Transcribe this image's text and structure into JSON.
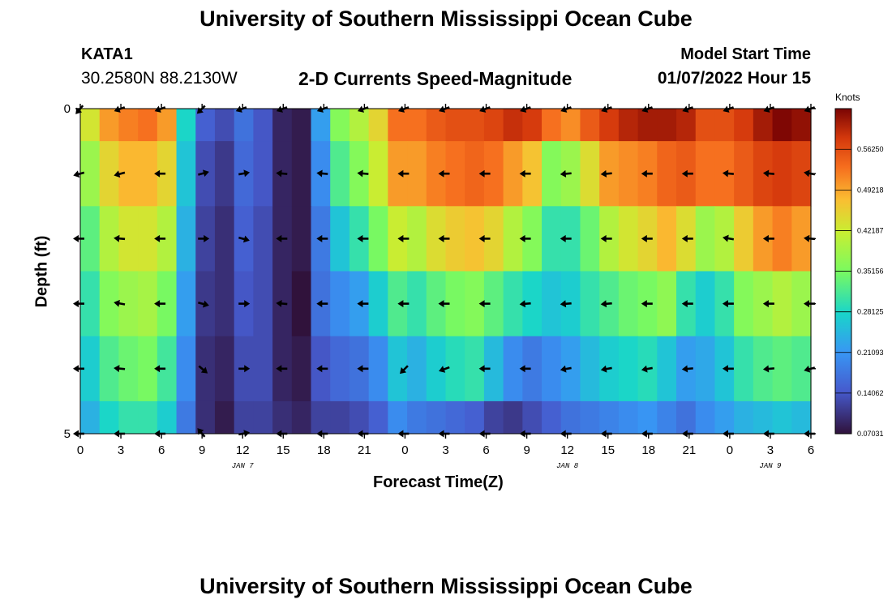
{
  "titles": {
    "main": "University of Southern Mississippi Ocean Cube",
    "next_panel": "University of Southern Mississippi Ocean Cube"
  },
  "station": {
    "id": "KATA1",
    "coords": "30.2580N  88.2130W"
  },
  "model": {
    "label": "Model Start Time",
    "time": "01/07/2022 Hour 15"
  },
  "chart_data": {
    "type": "heatmap",
    "title": "2-D Currents Speed-Magnitude",
    "xlabel": "Forecast Time(Z)",
    "ylabel": "Depth (ft)",
    "colorbar_label": "Knots",
    "colorbar_ticks": [
      "0.56250",
      "0.49218",
      "0.42187",
      "0.35156",
      "0.28125",
      "0.21093",
      "0.14062",
      "0.07031"
    ],
    "colorbar_range": [
      0.0703,
      0.633
    ],
    "x_hours": [
      0,
      3,
      6,
      9,
      12,
      15,
      18,
      21,
      24,
      27,
      30,
      33,
      36,
      39,
      42,
      45,
      48,
      51,
      54
    ],
    "x_tick_labels": [
      "0",
      "3",
      "6",
      "9",
      "12",
      "15",
      "18",
      "21",
      "0",
      "3",
      "6",
      "9",
      "12",
      "15",
      "18",
      "21",
      "0",
      "3",
      "6"
    ],
    "xlim_hours": [
      0,
      54
    ],
    "day_labels": [
      {
        "hour": 12,
        "label": "JAN 7"
      },
      {
        "hour": 36,
        "label": "JAN 8"
      },
      {
        "hour": 51,
        "label": "JAN 9"
      }
    ],
    "y_tick_labels": [
      "0",
      "",
      "",
      "",
      "",
      "5"
    ],
    "ylim": [
      0,
      5
    ],
    "depth_rows": [
      {
        "depth_range": [
          0,
          0.5
        ],
        "speeds": [
          0.43,
          0.5,
          0.52,
          0.53,
          0.5,
          0.28,
          0.15,
          0.13,
          0.17,
          0.14,
          0.09,
          0.08,
          0.22,
          0.36,
          0.4,
          0.45,
          0.53,
          0.53,
          0.55,
          0.56,
          0.56,
          0.57,
          0.59,
          0.58,
          0.53,
          0.51,
          0.55,
          0.58,
          0.6,
          0.61,
          0.61,
          0.6,
          0.56,
          0.56,
          0.58,
          0.61,
          0.63,
          0.62
        ]
      },
      {
        "depth_range": [
          0.5,
          1.5
        ],
        "speeds": [
          0.38,
          0.45,
          0.48,
          0.48,
          0.45,
          0.26,
          0.13,
          0.11,
          0.16,
          0.14,
          0.09,
          0.08,
          0.2,
          0.32,
          0.36,
          0.42,
          0.5,
          0.5,
          0.52,
          0.53,
          0.54,
          0.53,
          0.5,
          0.47,
          0.36,
          0.38,
          0.44,
          0.5,
          0.51,
          0.52,
          0.54,
          0.55,
          0.53,
          0.53,
          0.55,
          0.57,
          0.58,
          0.57
        ]
      },
      {
        "depth_range": [
          1.5,
          2.5
        ],
        "speeds": [
          0.33,
          0.4,
          0.43,
          0.43,
          0.4,
          0.24,
          0.12,
          0.1,
          0.15,
          0.13,
          0.09,
          0.08,
          0.18,
          0.26,
          0.3,
          0.35,
          0.42,
          0.4,
          0.44,
          0.46,
          0.47,
          0.45,
          0.4,
          0.36,
          0.3,
          0.3,
          0.34,
          0.4,
          0.43,
          0.45,
          0.48,
          0.44,
          0.38,
          0.4,
          0.46,
          0.5,
          0.52,
          0.5
        ]
      },
      {
        "depth_range": [
          2.5,
          3.5
        ],
        "speeds": [
          0.3,
          0.36,
          0.38,
          0.39,
          0.35,
          0.22,
          0.11,
          0.1,
          0.14,
          0.13,
          0.09,
          0.07,
          0.17,
          0.2,
          0.22,
          0.27,
          0.32,
          0.3,
          0.33,
          0.35,
          0.36,
          0.33,
          0.3,
          0.28,
          0.26,
          0.27,
          0.3,
          0.32,
          0.34,
          0.35,
          0.37,
          0.3,
          0.27,
          0.3,
          0.36,
          0.38,
          0.4,
          0.38
        ]
      },
      {
        "depth_range": [
          3.5,
          4.5
        ],
        "speeds": [
          0.27,
          0.32,
          0.34,
          0.35,
          0.31,
          0.2,
          0.1,
          0.09,
          0.13,
          0.13,
          0.09,
          0.08,
          0.14,
          0.16,
          0.17,
          0.2,
          0.26,
          0.24,
          0.27,
          0.29,
          0.3,
          0.25,
          0.2,
          0.18,
          0.2,
          0.22,
          0.25,
          0.27,
          0.28,
          0.29,
          0.26,
          0.22,
          0.23,
          0.26,
          0.3,
          0.32,
          0.33,
          0.32
        ]
      },
      {
        "depth_range": [
          4.5,
          5
        ],
        "speeds": [
          0.24,
          0.28,
          0.3,
          0.3,
          0.27,
          0.18,
          0.1,
          0.08,
          0.12,
          0.12,
          0.1,
          0.09,
          0.12,
          0.12,
          0.13,
          0.15,
          0.2,
          0.18,
          0.17,
          0.16,
          0.15,
          0.12,
          0.11,
          0.13,
          0.15,
          0.17,
          0.18,
          0.19,
          0.2,
          0.21,
          0.19,
          0.17,
          0.2,
          0.22,
          0.24,
          0.25,
          0.26,
          0.25
        ]
      }
    ],
    "vector_rows": [
      {
        "depth": 0,
        "directions_deg": [
          230,
          200,
          200,
          225,
          200,
          200,
          200,
          200,
          200,
          200,
          200,
          200,
          200,
          200,
          200,
          200,
          200,
          200,
          200
        ]
      },
      {
        "depth": 1,
        "directions_deg": [
          195,
          195,
          180,
          15,
          10,
          175,
          175,
          175,
          180,
          180,
          180,
          180,
          185,
          185,
          180,
          180,
          175,
          175,
          170
        ]
      },
      {
        "depth": 2,
        "directions_deg": [
          180,
          175,
          180,
          0,
          345,
          180,
          180,
          180,
          180,
          180,
          180,
          180,
          180,
          180,
          180,
          180,
          170,
          180,
          175
        ]
      },
      {
        "depth": 3,
        "directions_deg": [
          180,
          170,
          180,
          345,
          0,
          175,
          180,
          180,
          180,
          180,
          180,
          185,
          185,
          185,
          180,
          180,
          180,
          180,
          180
        ]
      },
      {
        "depth": 4,
        "directions_deg": [
          180,
          175,
          180,
          320,
          0,
          180,
          180,
          180,
          225,
          200,
          180,
          180,
          190,
          190,
          190,
          185,
          180,
          185,
          195
        ]
      },
      {
        "depth": 5,
        "directions_deg": [
          180,
          180,
          180,
          130,
          10,
          180,
          180,
          180,
          180,
          180,
          180,
          180,
          180,
          180,
          180,
          180,
          180,
          180,
          180
        ]
      }
    ]
  }
}
